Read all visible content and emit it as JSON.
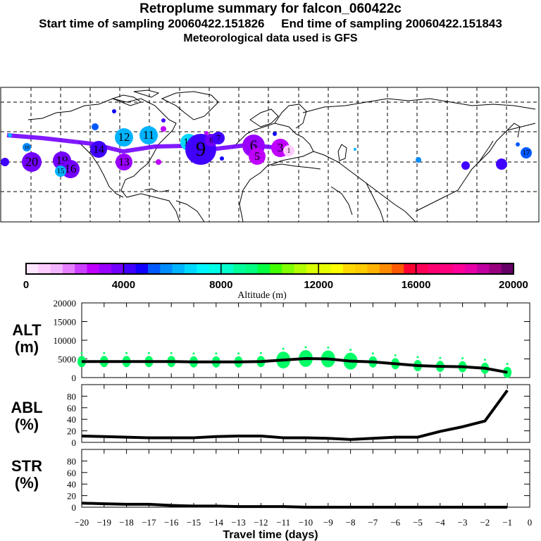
{
  "header": {
    "title": "Retroplume summary for falcon_060422c",
    "start_label": "Start time of sampling 20060422.151826",
    "end_label": "End time of sampling 20060422.151843",
    "met_label": "Meteorological data used is GFS"
  },
  "colorbar": {
    "label": "Altitude (m)",
    "ticks": [
      "0",
      "4000",
      "8000",
      "12000",
      "16000",
      "20000"
    ],
    "range": [
      0,
      20000
    ],
    "colors": [
      "#ffe6ff",
      "#ffccff",
      "#f2b3ff",
      "#e680ff",
      "#cc40ff",
      "#bf00ff",
      "#9900ff",
      "#7300ff",
      "#4000ff",
      "#1000ff",
      "#0059ff",
      "#008cff",
      "#00b3ff",
      "#00d9ff",
      "#00f5ff",
      "#00ffe6",
      "#00ffcc",
      "#00ff99",
      "#00ff80",
      "#00ff40",
      "#40ff00",
      "#80ff00",
      "#b3ff00",
      "#d9ff00",
      "#e6ff00",
      "#ffff00",
      "#ffd900",
      "#ffcc00",
      "#ffb300",
      "#ff8c00",
      "#ff5900",
      "#ff0033",
      "#ff0059",
      "#ff0073",
      "#ff0080",
      "#ff0099",
      "#e600a6",
      "#c000a0",
      "#990080",
      "#660066"
    ]
  },
  "map": {
    "clusters": [
      {
        "label": "20",
        "color": "#7300ff",
        "size": "large"
      },
      {
        "label": "19",
        "color": "#7300ff",
        "size": "large"
      },
      {
        "label": "18",
        "color": "#008cff",
        "size": "small"
      },
      {
        "label": "17",
        "color": "#0059ff",
        "size": "small"
      },
      {
        "label": "16",
        "color": "#7300ff",
        "size": "large"
      },
      {
        "label": "15",
        "color": "#00b3ff",
        "size": "medium"
      },
      {
        "label": "14",
        "color": "#4000ff",
        "size": "medium"
      },
      {
        "label": "13",
        "color": "#9900ff",
        "size": "large"
      },
      {
        "label": "12",
        "color": "#00b3ff",
        "size": "large"
      },
      {
        "label": "11",
        "color": "#00b3ff",
        "size": "large"
      },
      {
        "label": "10",
        "color": "#00d9ff",
        "size": "large"
      },
      {
        "label": "9",
        "color": "#4000ff",
        "size": "large"
      },
      {
        "label": "8",
        "color": "#7300ff",
        "size": "large"
      },
      {
        "label": "7",
        "color": "#4000ff",
        "size": "medium"
      },
      {
        "label": "6",
        "color": "#9900ff",
        "size": "large"
      },
      {
        "label": "5",
        "color": "#bf00ff",
        "size": "medium"
      },
      {
        "label": "3",
        "color": "#bf00ff",
        "size": "medium"
      },
      {
        "label": "1",
        "color": "#ffccff",
        "size": "medium"
      }
    ]
  },
  "chart_data": [
    {
      "type": "line",
      "panel": "ALT",
      "ylabel": "ALT\n(m)",
      "ylabel_line1": "ALT",
      "ylabel_line2": "(m)",
      "ylim": [
        0,
        20000
      ],
      "yticks": [
        "0",
        "5000",
        "10000",
        "15000",
        "20000"
      ],
      "x": [
        -20,
        -19,
        -18,
        -17,
        -16,
        -15,
        -14,
        -13,
        -12,
        -11,
        -10,
        -9,
        -8,
        -7,
        -6,
        -5,
        -4,
        -3,
        -2,
        -1
      ],
      "values": [
        4300,
        4300,
        4300,
        4300,
        4300,
        4200,
        4200,
        4200,
        4300,
        4700,
        5100,
        5000,
        4400,
        4200,
        3700,
        3200,
        3000,
        2900,
        2500,
        1400
      ],
      "cluster_color": "#00ff66"
    },
    {
      "type": "line",
      "panel": "ABL",
      "ylabel_line1": "ABL",
      "ylabel_line2": "(%)",
      "ylim": [
        0,
        100
      ],
      "yticks": [
        "0",
        "20",
        "40",
        "60",
        "80"
      ],
      "x": [
        -20,
        -19,
        -18,
        -17,
        -16,
        -15,
        -14,
        -13,
        -12,
        -11,
        -10,
        -9,
        -8,
        -7,
        -6,
        -5,
        -4,
        -3,
        -2,
        -1
      ],
      "values": [
        11,
        10,
        9,
        8,
        8,
        8,
        10,
        11,
        11,
        8,
        8,
        7,
        5,
        7,
        9,
        9,
        19,
        27,
        37,
        90
      ]
    },
    {
      "type": "line",
      "panel": "STR",
      "ylabel_line1": "STR",
      "ylabel_line2": "(%)",
      "ylim": [
        0,
        100
      ],
      "yticks": [
        "0",
        "20",
        "40",
        "60",
        "80"
      ],
      "x": [
        -20,
        -19,
        -18,
        -17,
        -16,
        -15,
        -14,
        -13,
        -12,
        -11,
        -10,
        -9,
        -8,
        -7,
        -6,
        -5,
        -4,
        -3,
        -2,
        -1
      ],
      "values": [
        7,
        6,
        5,
        5,
        3,
        2,
        2,
        1,
        1,
        1,
        0,
        0,
        0,
        0,
        0,
        0,
        0,
        0,
        0,
        0
      ],
      "xlabel": "Travel time (days)",
      "xticks": [
        "-20",
        "-19",
        "-18",
        "-17",
        "-16",
        "-15",
        "-14",
        "-13",
        "-12",
        "-11",
        "-10",
        "-9",
        "-8",
        "-7",
        "-6",
        "-5",
        "-4",
        "-3",
        "-2",
        "-1",
        "0"
      ],
      "xlim": [
        -20,
        0
      ]
    }
  ]
}
